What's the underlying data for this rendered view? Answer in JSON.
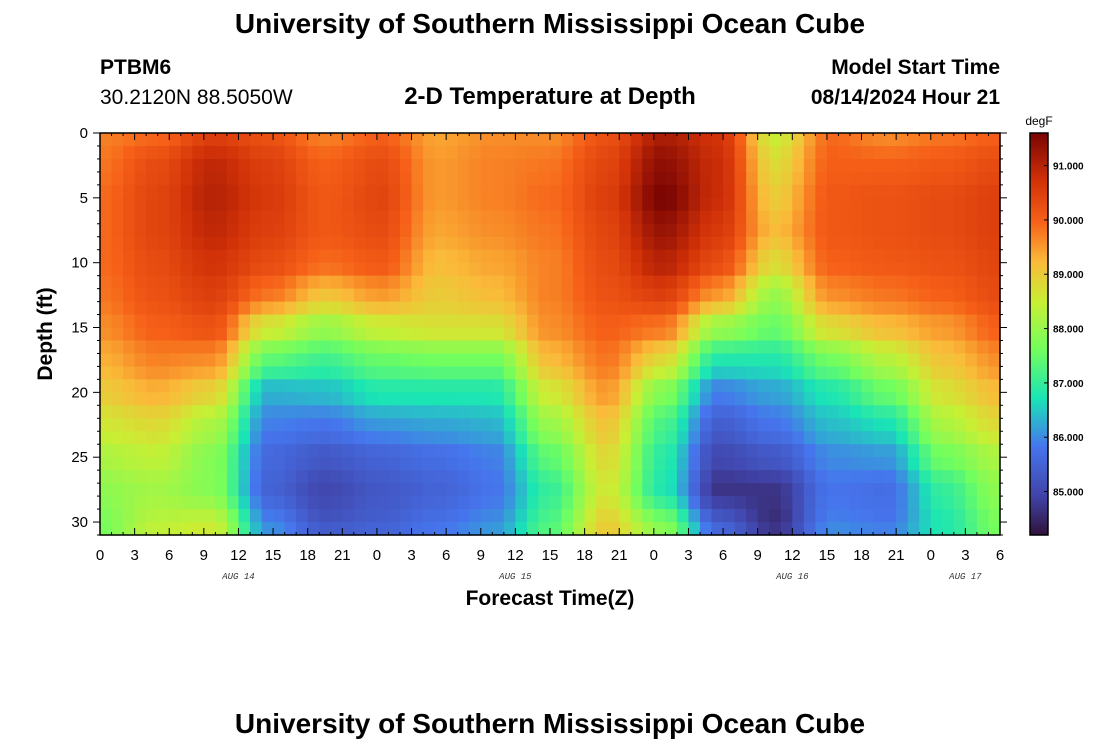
{
  "header": {
    "title": "University of Southern Mississippi Ocean Cube",
    "station_id": "PTBM6",
    "coords": "30.2120N  88.5050W",
    "plot_title": "2-D Temperature at Depth",
    "start_label": "Model Start Time",
    "start_value": "08/14/2024 Hour 21",
    "bottom_title": "University of Southern Mississippi Ocean Cube"
  },
  "chart_data": {
    "type": "heatmap",
    "title": "2-D Temperature at Depth",
    "xlabel": "Forecast Time(Z)",
    "ylabel": "Depth (ft)",
    "x_hours": [
      0,
      3,
      6,
      9,
      12,
      15,
      18,
      21,
      24,
      27,
      30,
      33,
      36,
      39,
      42,
      45,
      48,
      51,
      54,
      57,
      60,
      63,
      66,
      69,
      72,
      75,
      78
    ],
    "x_tick_labels": [
      "0",
      "3",
      "6",
      "9",
      "12",
      "15",
      "18",
      "21",
      "0",
      "3",
      "6",
      "9",
      "12",
      "15",
      "18",
      "21",
      "0",
      "3",
      "6",
      "9",
      "12",
      "15",
      "18",
      "21",
      "0",
      "3",
      "6"
    ],
    "date_labels": [
      {
        "hour": 12,
        "text": "AUG 14"
      },
      {
        "hour": 36,
        "text": "AUG 15"
      },
      {
        "hour": 60,
        "text": "AUG 16"
      },
      {
        "hour": 75,
        "text": "AUG 17"
      }
    ],
    "depth_ticks": [
      0,
      5,
      10,
      15,
      20,
      25,
      30
    ],
    "ylim": [
      0,
      31
    ],
    "xlim": [
      0,
      78
    ],
    "depths": [
      0,
      2.5,
      5,
      7.5,
      10,
      12.5,
      15,
      17.5,
      20,
      22.5,
      25,
      27.5,
      30,
      31
    ],
    "values": [
      [
        89.7,
        89.9,
        90.5,
        90.2,
        89.7,
        90.0,
        89.4,
        89.6,
        89.6,
        90.2,
        91.1,
        90.7,
        88.5,
        89.9,
        89.6,
        89.8,
        90.0
      ],
      [
        89.8,
        90.3,
        90.9,
        90.5,
        90.0,
        90.3,
        89.5,
        89.7,
        89.8,
        90.4,
        91.4,
        90.8,
        88.8,
        90.0,
        90.0,
        90.1,
        90.3
      ],
      [
        89.9,
        90.4,
        91.0,
        90.6,
        90.1,
        90.4,
        89.5,
        89.7,
        89.9,
        90.5,
        91.6,
        90.8,
        89.0,
        90.1,
        90.2,
        90.3,
        90.5
      ],
      [
        89.9,
        90.4,
        90.9,
        90.5,
        90.1,
        90.3,
        89.4,
        89.6,
        89.8,
        90.4,
        91.3,
        90.6,
        89.2,
        90.1,
        90.2,
        90.3,
        90.5
      ],
      [
        89.9,
        90.3,
        90.7,
        90.3,
        89.9,
        90.1,
        89.2,
        89.4,
        89.7,
        90.3,
        91.0,
        90.3,
        88.8,
        90.0,
        90.1,
        90.2,
        90.4
      ],
      [
        89.8,
        90.2,
        90.5,
        89.8,
        89.1,
        89.5,
        89.0,
        89.2,
        89.7,
        90.2,
        90.5,
        89.5,
        88.0,
        89.6,
        89.8,
        90.0,
        90.3
      ],
      [
        89.6,
        90.0,
        90.2,
        88.6,
        88.0,
        88.5,
        88.7,
        88.7,
        89.6,
        90.0,
        89.8,
        88.0,
        87.5,
        88.8,
        89.2,
        89.5,
        90.0
      ],
      [
        89.3,
        89.7,
        89.6,
        87.4,
        87.1,
        87.5,
        87.6,
        87.6,
        89.2,
        89.8,
        88.8,
        86.8,
        86.8,
        87.6,
        88.3,
        89.1,
        89.6
      ],
      [
        89.0,
        89.3,
        88.9,
        86.3,
        86.4,
        86.8,
        86.8,
        86.8,
        88.6,
        89.5,
        87.8,
        85.9,
        86.2,
        86.8,
        87.5,
        88.7,
        89.2
      ],
      [
        88.6,
        88.8,
        88.2,
        85.9,
        85.8,
        86.1,
        86.2,
        86.3,
        88.0,
        89.1,
        87.2,
        85.4,
        85.8,
        86.4,
        86.7,
        88.2,
        88.8
      ],
      [
        88.2,
        88.4,
        87.8,
        85.6,
        85.3,
        85.5,
        85.7,
        85.9,
        87.4,
        88.8,
        86.9,
        85.0,
        85.3,
        86.0,
        86.1,
        87.6,
        88.2
      ],
      [
        87.9,
        88.1,
        87.8,
        85.5,
        85.0,
        85.3,
        85.5,
        85.8,
        87.0,
        88.6,
        86.8,
        84.7,
        84.7,
        85.8,
        85.7,
        87.0,
        87.9
      ],
      [
        87.7,
        88.3,
        88.4,
        85.9,
        85.2,
        85.4,
        85.7,
        86.0,
        87.2,
        88.9,
        87.6,
        85.3,
        84.6,
        85.9,
        85.8,
        86.8,
        87.7
      ],
      [
        87.6,
        88.5,
        88.7,
        86.2,
        85.5,
        85.6,
        85.9,
        86.2,
        87.4,
        89.1,
        88.1,
        85.8,
        84.8,
        86.1,
        86.0,
        86.8,
        87.6
      ]
    ],
    "colorbar": {
      "unit": "degF",
      "min": 84.2,
      "max": 91.6,
      "tick_values": [
        91.0,
        90.0,
        89.0,
        88.0,
        87.0,
        86.0,
        85.0
      ],
      "tick_labels": [
        "91.000",
        "90.000",
        "89.000",
        "88.000",
        "87.000",
        "86.000",
        "85.000"
      ]
    }
  }
}
